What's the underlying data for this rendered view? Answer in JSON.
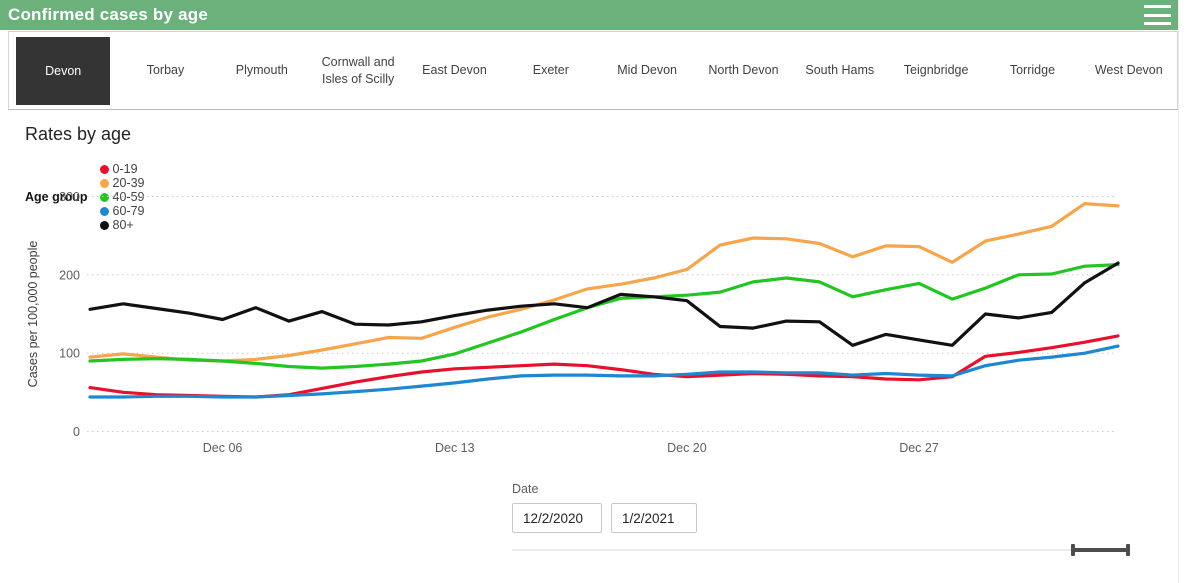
{
  "header": {
    "title": "Confirmed cases by age",
    "bg_color": "#6CB17C"
  },
  "tabs": {
    "items": [
      "Devon",
      "Torbay",
      "Plymouth",
      "Cornwall and Isles of Scilly",
      "East Devon",
      "Exeter",
      "Mid Devon",
      "North Devon",
      "South Hams",
      "Teignbridge",
      "Torridge",
      "West Devon"
    ],
    "selected": "Devon",
    "selected_bg": "#343434"
  },
  "chart_data": {
    "type": "line",
    "title": "Rates by age",
    "legend_title": "Age group",
    "legend_position": "top",
    "xlabel": "",
    "ylabel": "Cases per 100,000 people",
    "ylim": [
      0,
      300
    ],
    "y_ticks": [
      0,
      100,
      200,
      300
    ],
    "grid": "horizontal dotted",
    "x": [
      "Dec 02",
      "Dec 03",
      "Dec 04",
      "Dec 05",
      "Dec 06",
      "Dec 07",
      "Dec 08",
      "Dec 09",
      "Dec 10",
      "Dec 11",
      "Dec 12",
      "Dec 13",
      "Dec 14",
      "Dec 15",
      "Dec 16",
      "Dec 17",
      "Dec 18",
      "Dec 19",
      "Dec 20",
      "Dec 21",
      "Dec 22",
      "Dec 23",
      "Dec 24",
      "Dec 25",
      "Dec 26",
      "Dec 27",
      "Dec 28",
      "Dec 29",
      "Dec 30",
      "Dec 31",
      "Jan 01",
      "Jan 02"
    ],
    "x_tick_labels": [
      "Dec 06",
      "Dec 13",
      "Dec 20",
      "Dec 27"
    ],
    "x_tick_indices": [
      4,
      11,
      18,
      25
    ],
    "series": [
      {
        "name": "0-19",
        "color": "#e8112d",
        "values": [
          56,
          50,
          47,
          46,
          45,
          44,
          47,
          55,
          63,
          70,
          76,
          80,
          82,
          84,
          86,
          84,
          79,
          73,
          70,
          72,
          74,
          73,
          71,
          70,
          67,
          66,
          70,
          96,
          101,
          107,
          114,
          122
        ]
      },
      {
        "name": "20-39",
        "color": "#f5a54c",
        "values": [
          95,
          99,
          95,
          91,
          90,
          92,
          97,
          104,
          112,
          120,
          119,
          133,
          146,
          156,
          168,
          182,
          188,
          196,
          207,
          238,
          247,
          246,
          240,
          223,
          237,
          236,
          216,
          243,
          252,
          262,
          291,
          288
        ]
      },
      {
        "name": "40-59",
        "color": "#23c523",
        "values": [
          90,
          92,
          93,
          92,
          90,
          87,
          83,
          81,
          83,
          86,
          90,
          99,
          113,
          127,
          143,
          158,
          170,
          172,
          174,
          178,
          191,
          196,
          191,
          172,
          181,
          189,
          169,
          183,
          200,
          201,
          211,
          213
        ]
      },
      {
        "name": "60-79",
        "color": "#1e87d0",
        "values": [
          44,
          44,
          45,
          45,
          44,
          44,
          46,
          48,
          51,
          54,
          58,
          62,
          67,
          71,
          72,
          72,
          71,
          71,
          73,
          76,
          76,
          75,
          75,
          72,
          74,
          72,
          71,
          84,
          91,
          95,
          100,
          109
        ]
      },
      {
        "name": "80+",
        "color": "#111111",
        "values": [
          156,
          163,
          157,
          151,
          143,
          158,
          141,
          153,
          137,
          136,
          140,
          148,
          155,
          160,
          163,
          158,
          175,
          172,
          167,
          134,
          132,
          141,
          140,
          110,
          124,
          117,
          110,
          150,
          145,
          152,
          190,
          215
        ]
      }
    ]
  },
  "slicer": {
    "label": "Date",
    "start_value": "12/2/2020",
    "end_value": "1/2/2021"
  }
}
